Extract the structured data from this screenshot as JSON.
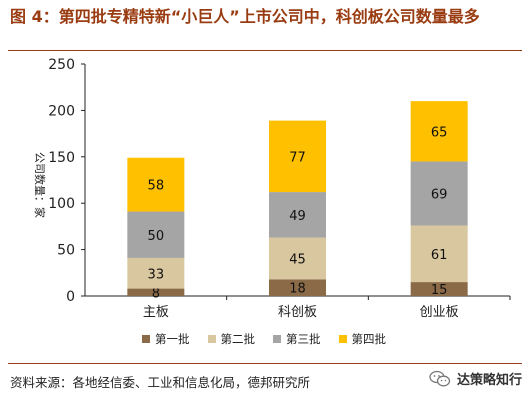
{
  "figure": {
    "title": "图 4：第四批专精特新“小巨人”上市公司中，科创板公司数量最多",
    "source": "资料来源：各地经信委、工业和信息化局，德邦研究所",
    "brand": "达策略知行"
  },
  "chart_data": {
    "type": "bar",
    "stacked": true,
    "categories": [
      "主板",
      "科创板",
      "创业板"
    ],
    "series": [
      {
        "name": "第一批",
        "values": [
          8,
          18,
          15
        ],
        "color": "#8b6a48"
      },
      {
        "name": "第二批",
        "values": [
          33,
          45,
          61
        ],
        "color": "#d9c79f"
      },
      {
        "name": "第三批",
        "values": [
          50,
          49,
          69
        ],
        "color": "#a5a5a5"
      },
      {
        "name": "第四批",
        "values": [
          58,
          77,
          65
        ],
        "color": "#ffc000"
      }
    ],
    "ylabel": "公司数量：家",
    "ylim": [
      0,
      250
    ],
    "yticks": [
      0,
      50,
      100,
      150,
      200,
      250
    ],
    "legend_position": "bottom",
    "data_labels": true,
    "grid": false
  }
}
